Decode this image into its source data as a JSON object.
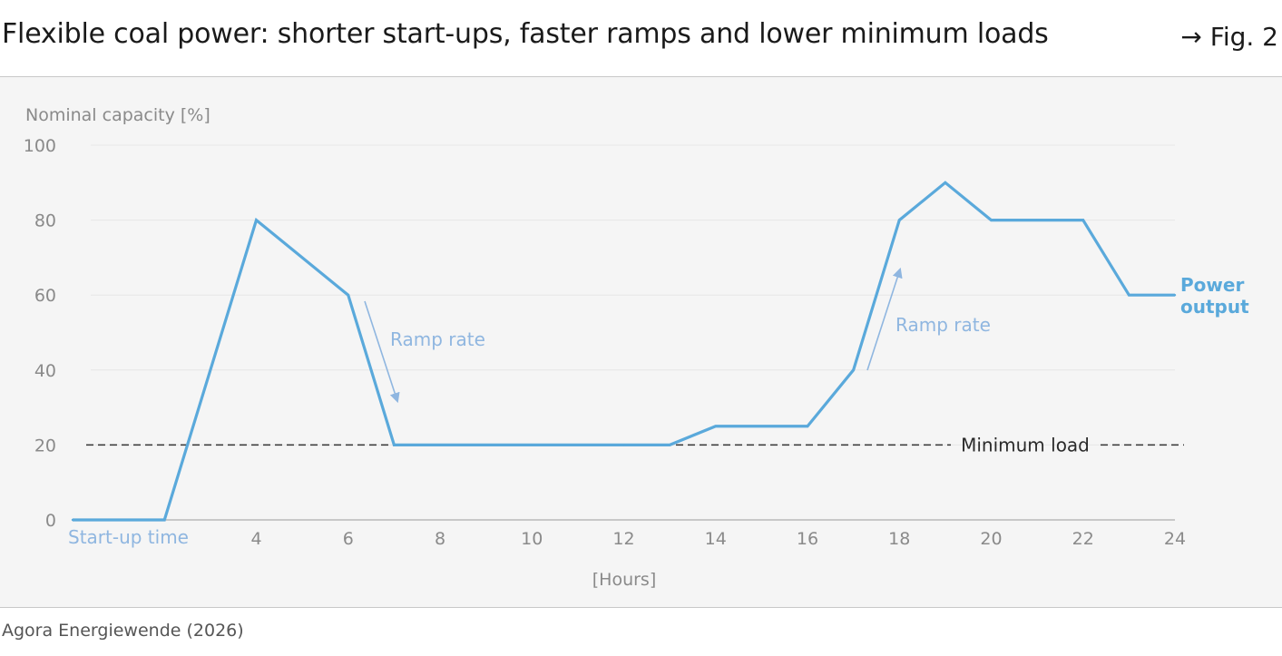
{
  "header": {
    "title": "Flexible coal power: shorter start-ups, faster ramps and lower minimum loads",
    "figure_ref": "→ Fig. 2"
  },
  "footer": {
    "source": "Agora Energiewende (2026)"
  },
  "colors": {
    "series": "#5aa9db",
    "annotation": "#8fb6e0",
    "min_load_line": "#333333",
    "axis_text": "#8a8a8a"
  },
  "chart_data": {
    "type": "line",
    "ylabel": "Nominal capacity [%]",
    "xlabel": "[Hours]",
    "xlim": [
      0,
      24
    ],
    "ylim": [
      0,
      100
    ],
    "x_ticks": [
      4,
      6,
      8,
      10,
      12,
      14,
      16,
      18,
      20,
      22,
      24
    ],
    "y_ticks": [
      0,
      20,
      40,
      60,
      80,
      100
    ],
    "grid": true,
    "series": [
      {
        "name": "Power output",
        "x": [
          0,
          2,
          4,
          6,
          7,
          8,
          10,
          12,
          13,
          14,
          15,
          16,
          17,
          18,
          19,
          20,
          21,
          22,
          23,
          24
        ],
        "values": [
          0,
          0,
          80,
          60,
          20,
          20,
          20,
          20,
          20,
          25,
          25,
          25,
          40,
          80,
          90,
          80,
          80,
          80,
          60,
          60
        ]
      }
    ],
    "reference_lines": [
      {
        "label": "Minimum load",
        "y": 20,
        "style": "dashed"
      }
    ],
    "annotations": {
      "startup": "Start-up time",
      "ramp_down": "Ramp rate",
      "ramp_up": "Ramp rate",
      "series_label_line1": "Power",
      "series_label_line2": "output"
    }
  }
}
